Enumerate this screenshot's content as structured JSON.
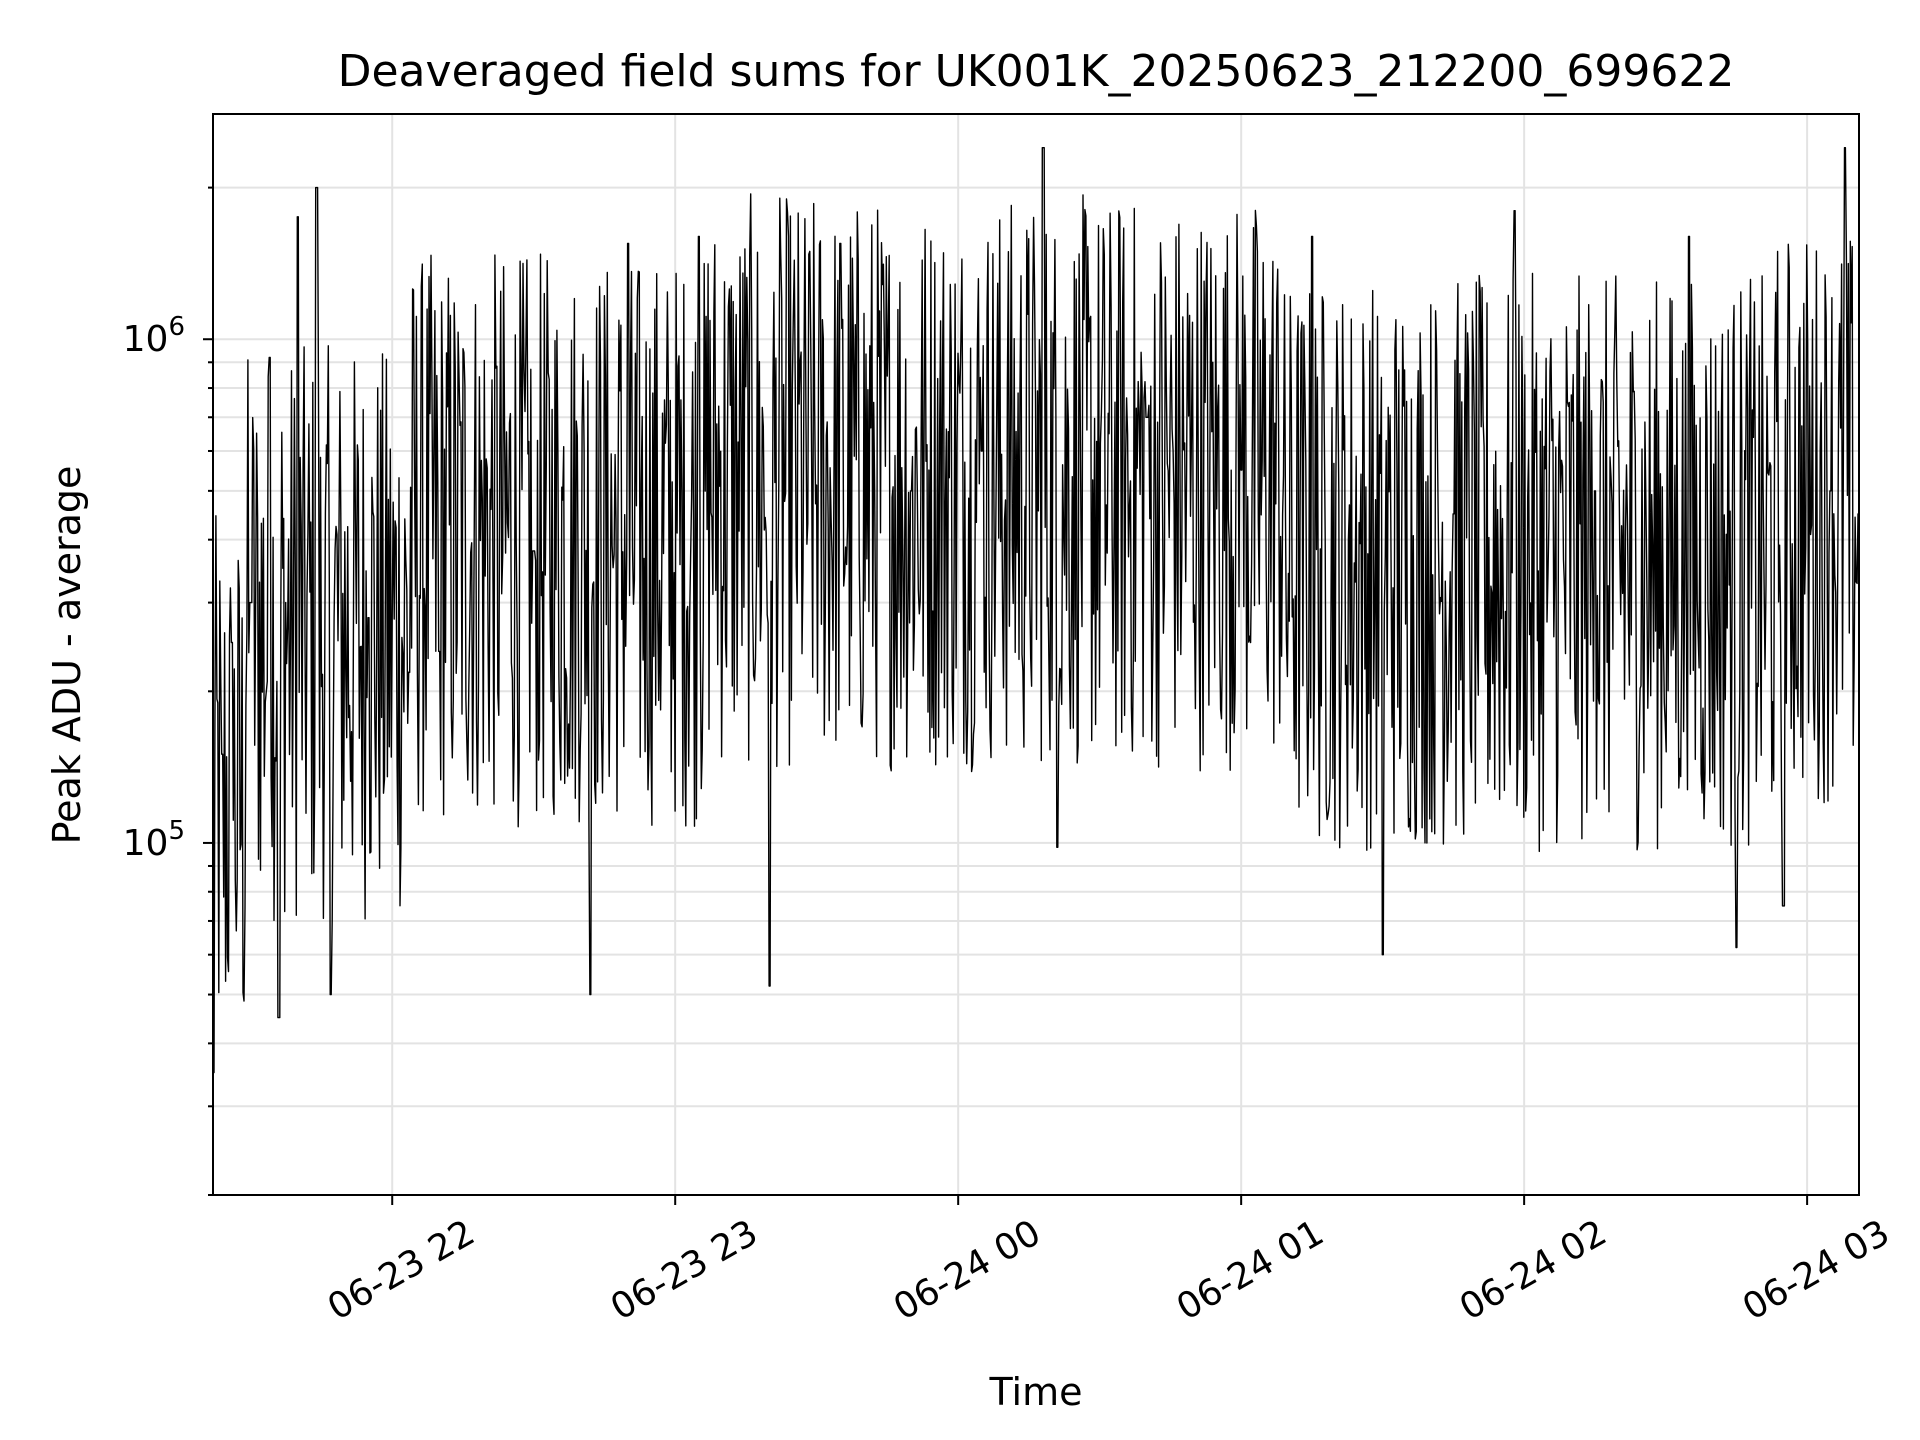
{
  "chart_data": {
    "type": "line",
    "title": "Deaveraged field sums for UK001K_20250623_212200_699622",
    "xlabel": "Time",
    "ylabel": "Peak ADU - average",
    "yscale": "log",
    "ylim": [
      20000,
      2800000
    ],
    "xlim": [
      "2025-06-23 21:22",
      "2025-06-24 03:11"
    ],
    "grid": true,
    "x_ticks": [
      {
        "label": "06-23 22",
        "value": "2025-06-23 22:00"
      },
      {
        "label": "06-23 23",
        "value": "2025-06-23 23:00"
      },
      {
        "label": "06-24 00",
        "value": "2025-06-24 00:00"
      },
      {
        "label": "06-24 01",
        "value": "2025-06-24 01:00"
      },
      {
        "label": "06-24 02",
        "value": "2025-06-24 02:00"
      },
      {
        "label": "06-24 03",
        "value": "2025-06-24 03:00"
      }
    ],
    "y_ticks": [
      {
        "base": "10",
        "exp": "5",
        "value": 100000
      },
      {
        "base": "10",
        "exp": "6",
        "value": 1000000
      }
    ],
    "series": [
      {
        "color": "#000000",
        "sample_points": [
          [
            "2025-06-23 21:22",
            35000
          ],
          [
            "2025-06-23 21:24",
            150000
          ],
          [
            "2025-06-23 21:26",
            250000
          ],
          [
            "2025-06-23 21:30",
            300000
          ],
          [
            "2025-06-23 21:34",
            920000
          ],
          [
            "2025-06-23 21:36",
            45000
          ],
          [
            "2025-06-23 21:40",
            1750000
          ],
          [
            "2025-06-23 21:44",
            2000000
          ],
          [
            "2025-06-23 21:47",
            50000
          ],
          [
            "2025-06-23 21:55",
            280000
          ],
          [
            "2025-06-23 22:10",
            240000
          ],
          [
            "2025-06-23 22:30",
            380000
          ],
          [
            "2025-06-23 22:42",
            50000
          ],
          [
            "2025-06-23 22:50",
            1550000
          ],
          [
            "2025-06-23 23:05",
            1600000
          ],
          [
            "2025-06-23 23:20",
            52000
          ],
          [
            "2025-06-23 23:35",
            1550000
          ],
          [
            "2025-06-23 23:50",
            500000
          ],
          [
            "2025-06-24 00:05",
            600000
          ],
          [
            "2025-06-24 00:18",
            2400000
          ],
          [
            "2025-06-24 00:21",
            98000
          ],
          [
            "2025-06-24 00:40",
            700000
          ],
          [
            "2025-06-24 01:00",
            550000
          ],
          [
            "2025-06-24 01:15",
            1600000
          ],
          [
            "2025-06-24 01:30",
            60000
          ],
          [
            "2025-06-24 01:45",
            450000
          ],
          [
            "2025-06-24 01:58",
            1800000
          ],
          [
            "2025-06-24 02:15",
            500000
          ],
          [
            "2025-06-24 02:35",
            1600000
          ],
          [
            "2025-06-24 02:45",
            62000
          ],
          [
            "2025-06-24 02:55",
            75000
          ],
          [
            "2025-06-24 03:05",
            500000
          ],
          [
            "2025-06-24 03:08",
            2400000
          ],
          [
            "2025-06-24 03:11",
            450000
          ]
        ]
      }
    ]
  }
}
